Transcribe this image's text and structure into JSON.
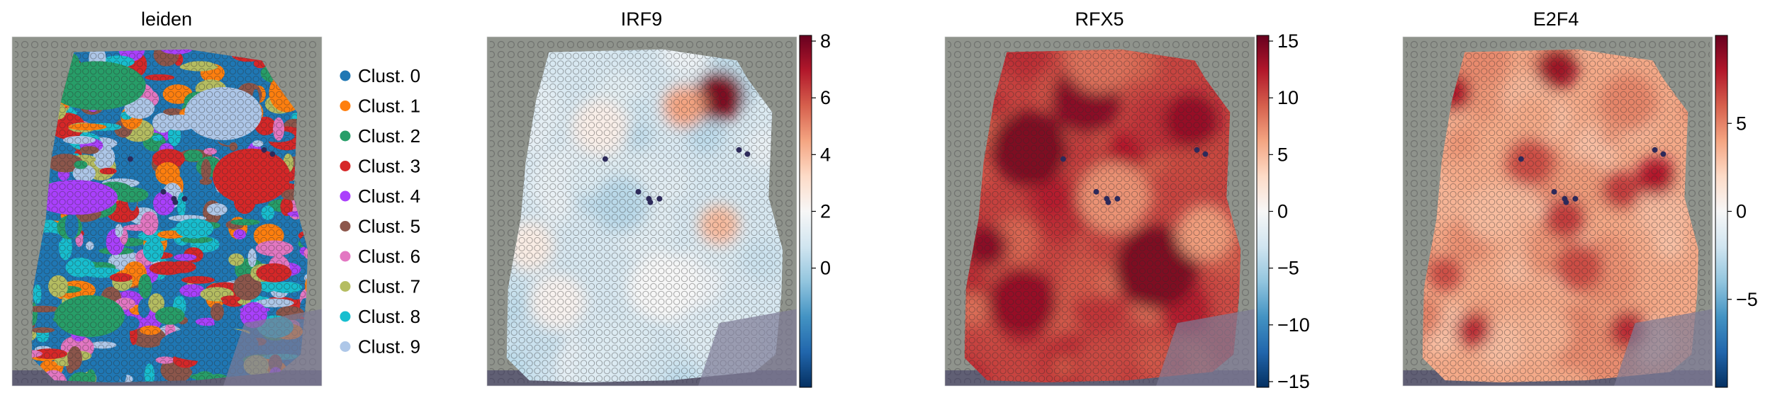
{
  "chart_data": [
    {
      "type": "scatter",
      "title": "leiden",
      "legend": {
        "placement": "right",
        "entries": [
          {
            "label": "Clust. 0",
            "color": "#1f77b4"
          },
          {
            "label": "Clust. 1",
            "color": "#ff7f0e"
          },
          {
            "label": "Clust. 2",
            "color": "#279e68"
          },
          {
            "label": "Clust. 3",
            "color": "#d62728"
          },
          {
            "label": "Clust. 4",
            "color": "#aa40fc"
          },
          {
            "label": "Clust. 5",
            "color": "#8c564b"
          },
          {
            "label": "Clust. 6",
            "color": "#e377c2"
          },
          {
            "label": "Clust. 7",
            "color": "#b5bd61"
          },
          {
            "label": "Clust. 8",
            "color": "#17becf"
          },
          {
            "label": "Clust. 9",
            "color": "#aec7e8"
          }
        ]
      },
      "grid": false,
      "axes_visible": false
    },
    {
      "type": "scatter",
      "title": "IRF9",
      "colormap": "RdBu_r",
      "colorbar": {
        "vmin": -4.2,
        "vmax": 8.2,
        "ticks": [
          0,
          2,
          4,
          6,
          8
        ]
      },
      "grid": false,
      "axes_visible": false
    },
    {
      "type": "scatter",
      "title": "RFX5",
      "colormap": "RdBu_r",
      "colorbar": {
        "vmin": -15.5,
        "vmax": 15.5,
        "ticks": [
          -15,
          -10,
          -5,
          0,
          5,
          10,
          15
        ]
      },
      "grid": false,
      "axes_visible": false
    },
    {
      "type": "scatter",
      "title": "E2F4",
      "colormap": "RdBu_r",
      "colorbar": {
        "vmin": -10,
        "vmax": 10,
        "ticks": [
          -5,
          0,
          5
        ]
      },
      "grid": false,
      "axes_visible": false
    }
  ],
  "colors": {
    "tissue_background": "#8f938c",
    "spot_outline": "#3a3a3a"
  }
}
